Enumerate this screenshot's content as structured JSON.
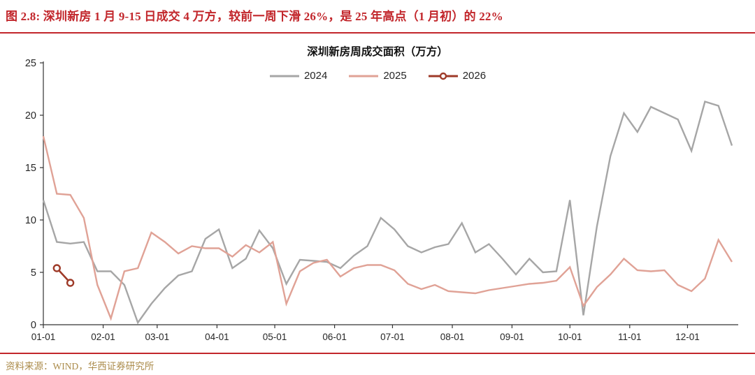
{
  "header": {
    "title": "图 2.8: 深圳新房 1 月 9-15 日成交 4 万方，较前一周下滑 26%，是 25 年高点（1 月初）的 22%"
  },
  "footer": {
    "source": "资料来源：WIND，华西证券研究所"
  },
  "colors": {
    "title_red": "#c2262b",
    "rule_red": "#c2262b",
    "source_gold": "#ab8b4a",
    "axis": "#333333",
    "tick_label": "#262626"
  },
  "chart_data": {
    "type": "line",
    "title": "深圳新房周成交面积（万方）",
    "xlabel": "",
    "ylabel": "",
    "ylim": [
      0,
      25
    ],
    "yticks": [
      0,
      5,
      10,
      15,
      20,
      25
    ],
    "grid": false,
    "legend_position": "top-center",
    "x_unit": "week of year (52 weekly points)",
    "x_ticks": [
      {
        "label": "01-01",
        "week": 0
      },
      {
        "label": "02-01",
        "week": 4.43
      },
      {
        "label": "03-01",
        "week": 8.43
      },
      {
        "label": "04-01",
        "week": 12.86
      },
      {
        "label": "05-01",
        "week": 17.14
      },
      {
        "label": "06-01",
        "week": 21.57
      },
      {
        "label": "07-01",
        "week": 25.86
      },
      {
        "label": "08-01",
        "week": 30.29
      },
      {
        "label": "09-01",
        "week": 34.71
      },
      {
        "label": "10-01",
        "week": 39.0
      },
      {
        "label": "11-01",
        "week": 43.43
      },
      {
        "label": "12-01",
        "week": 47.71
      }
    ],
    "series": [
      {
        "name": "2024",
        "color": "#a6a6a6",
        "values": [
          11.9,
          7.9,
          7.75,
          7.9,
          5.1,
          5.1,
          3.8,
          0.2,
          2.0,
          3.5,
          4.7,
          5.1,
          8.2,
          9.1,
          5.4,
          6.3,
          9.0,
          7.3,
          3.9,
          6.2,
          6.1,
          6.0,
          5.4,
          6.6,
          7.5,
          10.2,
          9.1,
          7.5,
          6.9,
          7.4,
          7.7,
          9.7,
          6.9,
          7.7,
          6.3,
          4.8,
          6.3,
          5.0,
          5.1,
          11.9,
          0.9,
          9.4,
          16.1,
          20.2,
          18.4,
          20.8,
          20.2,
          19.6,
          16.6,
          21.3,
          20.9,
          17.1
        ]
      },
      {
        "name": "2025",
        "color": "#e0a296",
        "values": [
          18.0,
          12.5,
          12.4,
          10.2,
          3.8,
          0.6,
          5.1,
          5.4,
          8.8,
          7.9,
          6.8,
          7.5,
          7.3,
          7.3,
          6.5,
          7.6,
          6.9,
          7.9,
          2.0,
          5.1,
          5.9,
          6.2,
          4.6,
          5.4,
          5.7,
          5.7,
          5.2,
          3.9,
          3.4,
          3.8,
          3.2,
          3.1,
          3.0,
          3.3,
          3.5,
          3.7,
          3.9,
          4.0,
          4.2,
          5.5,
          1.8,
          3.6,
          4.8,
          6.3,
          5.2,
          5.1,
          5.2,
          3.8,
          3.2,
          4.4,
          8.1,
          6.0
        ]
      },
      {
        "name": "2026",
        "color": "#9e3a28",
        "marker": "open-circle",
        "points": [
          {
            "week": 1,
            "value": 5.4
          },
          {
            "week": 2,
            "value": 4.0
          }
        ]
      }
    ]
  }
}
